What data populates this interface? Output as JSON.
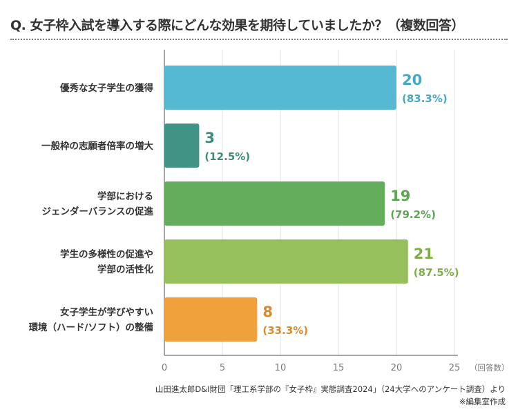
{
  "title": "Q. 女子枠入試を導入する際にどんな効果を期待していましたか？（複数回答）",
  "source": "山田進太郎D&I財団「理工系学部の『女子枠』実態調査2024」（24大学へのアンケート調査）より",
  "note": "※編集室作成",
  "chart_data": {
    "type": "bar",
    "orientation": "horizontal",
    "categories": [
      [
        "優秀な女子学生の獲得"
      ],
      [
        "一般枠の志願者倍率の増大"
      ],
      [
        "学部における",
        "ジェンダーバランスの促進"
      ],
      [
        "学生の多様性の促進や",
        "学部の活性化"
      ],
      [
        "女子学生が学びやすい",
        "環境（ハード/ソフト）の整備"
      ]
    ],
    "values": [
      20,
      3,
      19,
      21,
      8
    ],
    "percent_labels": [
      "(83.3%)",
      "(12.5%)",
      "(79.2%)",
      "(87.5%)",
      "(33.3%)"
    ],
    "colors": [
      "#56b9d4",
      "#3f9486",
      "#63ad5c",
      "#96c05b",
      "#f1a13b"
    ],
    "label_colors": [
      "#45a9c6",
      "#3f8a7d",
      "#5ba553",
      "#7fae48",
      "#d98a2b"
    ],
    "xlim": [
      0,
      25
    ],
    "xticks": [
      "0",
      "5",
      "10",
      "15",
      "20",
      "25"
    ],
    "xlabel": "（回答数）",
    "grid": true
  }
}
